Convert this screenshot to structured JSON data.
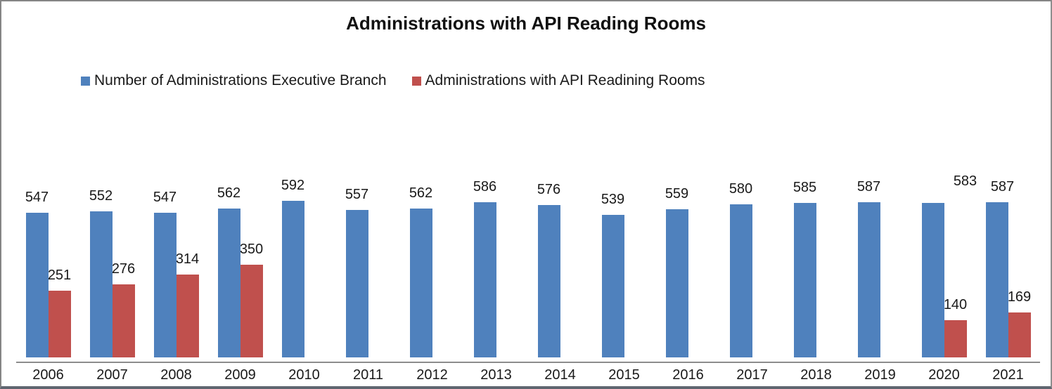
{
  "title": "Administrations with API Reading Rooms",
  "legend": {
    "items": [
      {
        "label": "Number of Administrations Executive Branch",
        "color": "#4F81BD"
      },
      {
        "label": "Administrations with API Readining Rooms",
        "color": "#C0504D"
      }
    ]
  },
  "chart_data": {
    "type": "bar",
    "title": "Administrations with API Reading Rooms",
    "categories": [
      "2006",
      "2007",
      "2008",
      "2009",
      "2010",
      "2011",
      "2012",
      "2013",
      "2014",
      "2015",
      "2016",
      "2017",
      "2018",
      "2019",
      "2020",
      "2021"
    ],
    "series": [
      {
        "name": "Number of Administrations Executive Branch",
        "color": "#4F81BD",
        "values": [
          547,
          552,
          547,
          562,
          592,
          557,
          562,
          586,
          576,
          539,
          559,
          580,
          585,
          587,
          583,
          587
        ],
        "data_labels": true,
        "label_offsets": {
          "14": {
            "dx": 46,
            "dy": -9
          },
          "15": {
            "dx": 8,
            "dy": 0
          }
        }
      },
      {
        "name": "Administrations with API Readining Rooms",
        "color": "#C0504D",
        "values": [
          251,
          276,
          314,
          350,
          null,
          null,
          null,
          null,
          null,
          null,
          null,
          null,
          null,
          null,
          140,
          169
        ],
        "data_labels": true,
        "label_offsets": {}
      }
    ],
    "ylim": [
      0,
      650
    ],
    "grid": false,
    "legend_position": "top-left",
    "axis_color": "#8c8c8c",
    "bar_colors": {
      "blue": "#4F81BD",
      "red": "#C0504D"
    }
  }
}
